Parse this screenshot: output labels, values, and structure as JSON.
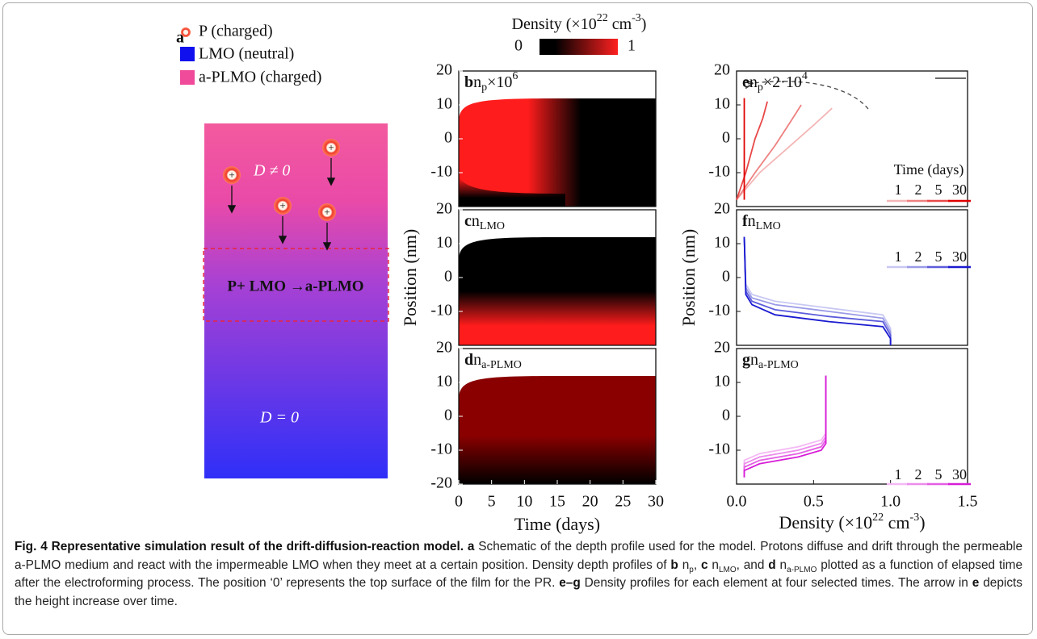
{
  "schematic": {
    "panel": "a",
    "legend": [
      "P (charged)",
      "LMO (neutral)",
      "a-PLMO (charged)"
    ],
    "proton": "+",
    "upper": "D ≠ 0",
    "reaction": "P+ LMO →a-PLMO",
    "lower": "D = 0"
  },
  "colorbar": {
    "title": [
      "Density (×10",
      "22",
      " cm",
      "-3",
      ")"
    ],
    "clim": [
      0,
      1
    ],
    "ticks": [
      0,
      1
    ]
  },
  "chart_data": [
    {
      "type": "heatmap",
      "panel": "b",
      "symbol": "n",
      "subscript": "p",
      "factor": "×10",
      "factor_exp": "6",
      "ylim": [
        -20,
        20
      ],
      "yticks": [
        20,
        10,
        0,
        -10
      ],
      "xlim": [
        0,
        30
      ]
    },
    {
      "type": "heatmap",
      "panel": "c",
      "symbol": "n",
      "subscript": "LMO",
      "ylim": [
        -20,
        20
      ],
      "yticks": [
        20,
        10,
        0,
        -10
      ],
      "xlim": [
        0,
        30
      ],
      "y_label": "Position (nm)"
    },
    {
      "type": "heatmap",
      "panel": "d",
      "symbol": "n",
      "subscript": "a-PLMO",
      "ylim": [
        -20,
        20
      ],
      "yticks": [
        20,
        10,
        0,
        -10,
        -20
      ],
      "xlim": [
        0,
        30
      ],
      "xticks": [
        0,
        5,
        10,
        15,
        20,
        25,
        30
      ],
      "x_label": "Time (days)"
    },
    {
      "type": "line",
      "panel": "e",
      "symbol": "n",
      "subscript": "p",
      "factor": "×2·10",
      "factor_exp": "4",
      "legend_title": "Time (days)",
      "ylim": [
        -20,
        20
      ],
      "yticks": [
        20,
        10,
        0,
        -10
      ],
      "xlim": [
        0,
        1.5
      ],
      "series": [
        {
          "name": "1",
          "color": "#f4b6b6",
          "x": [
            0,
            0.15,
            0.35,
            0.5,
            0.62
          ],
          "y": [
            -18,
            -10,
            -2,
            4,
            9
          ]
        },
        {
          "name": "2",
          "color": "#ee8080",
          "x": [
            0,
            0.12,
            0.25,
            0.35,
            0.42
          ],
          "y": [
            -18,
            -10,
            -2,
            5,
            10
          ]
        },
        {
          "name": "5",
          "color": "#e84848",
          "x": [
            0,
            0.06,
            0.12,
            0.17,
            0.2
          ],
          "y": [
            -18,
            -10,
            0,
            6,
            11
          ]
        },
        {
          "name": "30",
          "color": "#e00000",
          "x": [
            0.05,
            0.05
          ],
          "y": [
            -18,
            12
          ]
        }
      ]
    },
    {
      "type": "line",
      "panel": "f",
      "symbol": "n",
      "subscript": "LMO",
      "ylim": [
        -20,
        20
      ],
      "yticks": [
        20,
        10,
        0,
        -10
      ],
      "xlim": [
        0,
        1.5
      ],
      "y_label": "Position (nm)",
      "series": [
        {
          "name": "1",
          "color": "#c8c8f4",
          "x": [
            0.05,
            0.06,
            0.1,
            0.25,
            0.6,
            0.95,
            1.0,
            1.0
          ],
          "y": [
            12,
            -2,
            -5,
            -7,
            -9,
            -11,
            -15,
            -20
          ]
        },
        {
          "name": "2",
          "color": "#9a9ae8",
          "x": [
            0.05,
            0.06,
            0.1,
            0.25,
            0.6,
            0.95,
            1.0,
            1.0
          ],
          "y": [
            12,
            -3,
            -6,
            -8,
            -10,
            -12,
            -16,
            -20
          ]
        },
        {
          "name": "5",
          "color": "#5c5cdc",
          "x": [
            0.05,
            0.06,
            0.1,
            0.25,
            0.6,
            0.95,
            1.0,
            1.0
          ],
          "y": [
            12,
            -4,
            -7,
            -9.5,
            -11.5,
            -13,
            -17,
            -20
          ]
        },
        {
          "name": "30",
          "color": "#1a1ad0",
          "x": [
            0.05,
            0.06,
            0.1,
            0.25,
            0.6,
            0.95,
            1.0,
            1.0
          ],
          "y": [
            12,
            -5,
            -8,
            -11,
            -13,
            -14.5,
            -18,
            -20
          ]
        }
      ]
    },
    {
      "type": "line",
      "panel": "g",
      "symbol": "n",
      "subscript": "a-PLMO",
      "ylim": [
        -20,
        20
      ],
      "yticks": [
        20,
        10,
        0,
        -10
      ],
      "xlim": [
        0,
        1.5
      ],
      "xticks": [
        {
          "value": 0,
          "label": "0.0"
        },
        0.5,
        {
          "value": 1,
          "label": "1.0"
        },
        1.5
      ],
      "x_label": [
        "Density (×10",
        "22",
        " cm",
        "-3",
        ")"
      ],
      "series": [
        {
          "name": "1",
          "color": "#f4b8f4",
          "x": [
            0.58,
            0.58,
            0.55,
            0.4,
            0.15,
            0.05,
            0.05
          ],
          "y": [
            12,
            -5,
            -7,
            -9,
            -11,
            -13,
            -18
          ]
        },
        {
          "name": "2",
          "color": "#ec8cec",
          "x": [
            0.58,
            0.58,
            0.55,
            0.4,
            0.15,
            0.05,
            0.05
          ],
          "y": [
            12,
            -6,
            -8,
            -10,
            -12,
            -14,
            -18
          ]
        },
        {
          "name": "5",
          "color": "#e45ee4",
          "x": [
            0.58,
            0.58,
            0.55,
            0.4,
            0.15,
            0.05,
            0.05
          ],
          "y": [
            12,
            -7,
            -9,
            -11,
            -13,
            -15,
            -18
          ]
        },
        {
          "name": "30",
          "color": "#d81cd8",
          "x": [
            0.58,
            0.58,
            0.55,
            0.4,
            0.15,
            0.05,
            0.05
          ],
          "y": [
            12,
            -8,
            -10,
            -12,
            -14,
            -16,
            -18
          ]
        }
      ]
    }
  ],
  "caption": [
    "Fig. 4 Representative simulation result of the drift-diffusion-reaction model.",
    "a",
    "Schematic of the depth profile used for the model. Protons diffuse and drift through the permeable a-PLMO medium and react with the impermeable LMO when they meet at a certain position. Density depth profiles of",
    "b",
    "n",
    "p",
    ",",
    "c",
    "n",
    "LMO",
    ", and",
    "d",
    "n",
    "a-PLMO",
    "plotted as a function of elapsed time after the electroforming process. The position ‘0’ represents the top surface of the film for the PR.",
    "e–g",
    "Density profiles for each element at four selected times. The arrow in",
    "e",
    "depicts the height increase over time."
  ]
}
